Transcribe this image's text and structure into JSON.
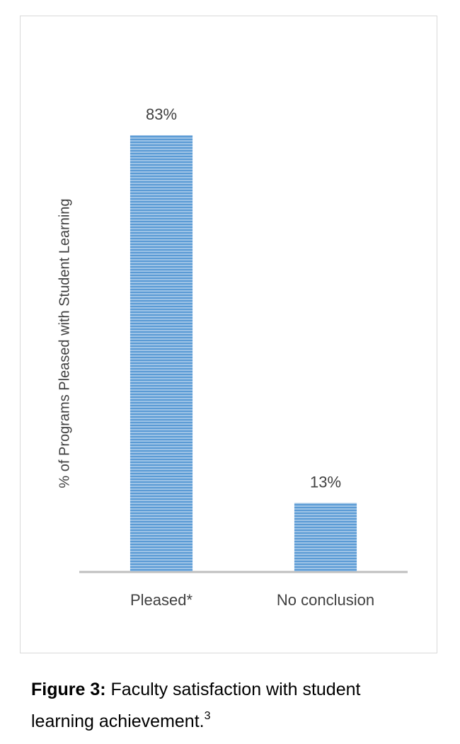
{
  "chart_data": {
    "type": "bar",
    "y_axis_label": "% of Programs Pleased with Student Learning",
    "categories": [
      "Pleased*",
      "No conclusion"
    ],
    "values": [
      83,
      13
    ],
    "value_labels": [
      "83%",
      "13%"
    ],
    "color": "#5b9bd5",
    "ylim": [
      0,
      90
    ],
    "caption": {
      "label": "Figure 3:",
      "text": " Faculty satisfaction with student",
      "text2": "learning achievement.",
      "note": "3"
    }
  }
}
